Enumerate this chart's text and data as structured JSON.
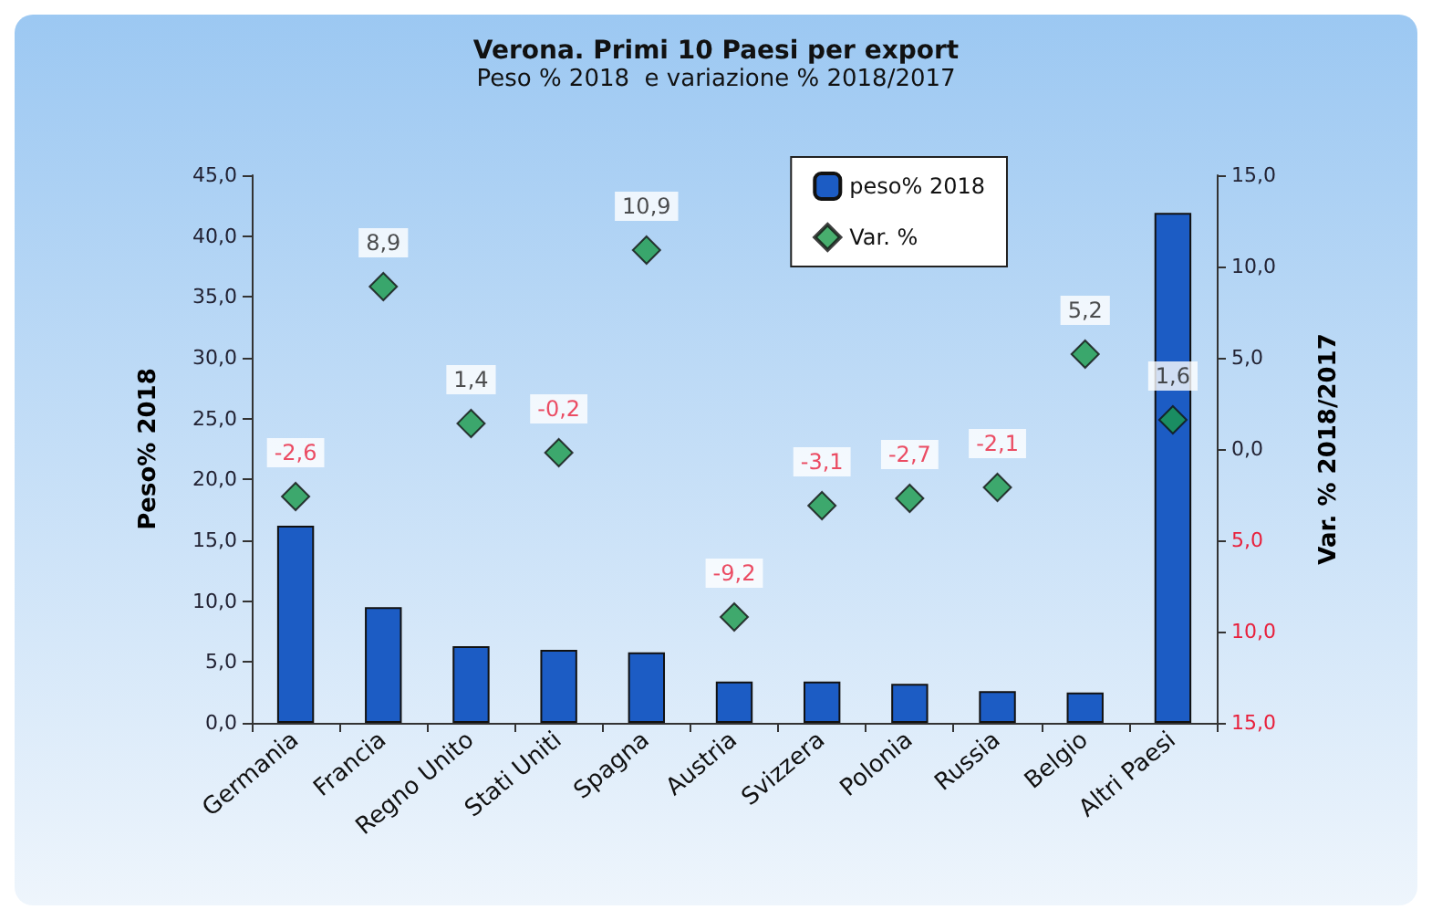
{
  "chart_data": {
    "type": "bar",
    "title": "Verona. Primi 10 Paesi per export",
    "subtitle": "Peso % 2018  e variazione % 2018/2017",
    "ylabel": "Peso% 2018",
    "y2label": "Var. % 2018/2017",
    "categories": [
      "Germania",
      "Francia",
      "Regno Unito",
      "Stati Uniti",
      "Spagna",
      "Austria",
      "Svizzera",
      "Polonia",
      "Russia",
      "Belgio",
      "Altri Paesi"
    ],
    "series": [
      {
        "name": "peso% 2018",
        "color": "#1c5cc4",
        "values": [
          16.2,
          9.5,
          6.3,
          6.0,
          5.8,
          3.4,
          3.4,
          3.2,
          2.6,
          2.5,
          41.9
        ]
      },
      {
        "name": "Var. %",
        "type": "scatter",
        "axis": "y2",
        "color": "#1a9a4a",
        "marker": "diamond",
        "values": [
          -2.6,
          8.9,
          1.4,
          -0.2,
          10.9,
          -9.2,
          -3.1,
          -2.7,
          -2.1,
          5.2,
          1.6
        ],
        "value_labels": [
          "-2,6",
          "8,9",
          "1,4",
          "-0,2",
          "10,9",
          "-9,2",
          "-3,1",
          "-2,7",
          "-2,1",
          "5,2",
          "1,6"
        ]
      }
    ],
    "ylim": [
      0,
      45
    ],
    "yticks": [
      {
        "value": 0,
        "label": "0,0"
      },
      {
        "value": 5,
        "label": "5,0"
      },
      {
        "value": 10,
        "label": "10,0"
      },
      {
        "value": 15,
        "label": "15,0"
      },
      {
        "value": 20,
        "label": "20,0"
      },
      {
        "value": 25,
        "label": "25,0"
      },
      {
        "value": 30,
        "label": "30,0"
      },
      {
        "value": 35,
        "label": "35,0"
      },
      {
        "value": 40,
        "label": "40,0"
      },
      {
        "value": 45,
        "label": "45,0"
      }
    ],
    "y2lim": [
      -15,
      15
    ],
    "y2ticks": [
      {
        "value": -15,
        "label": "15,0"
      },
      {
        "value": -10,
        "label": "10,0"
      },
      {
        "value": -5,
        "label": "5,0"
      },
      {
        "value": 0,
        "label": "0,0"
      },
      {
        "value": 5,
        "label": "5,0"
      },
      {
        "value": 10,
        "label": "10,0"
      },
      {
        "value": 15,
        "label": "15,0"
      }
    ],
    "legend": "top right",
    "grid": false
  }
}
